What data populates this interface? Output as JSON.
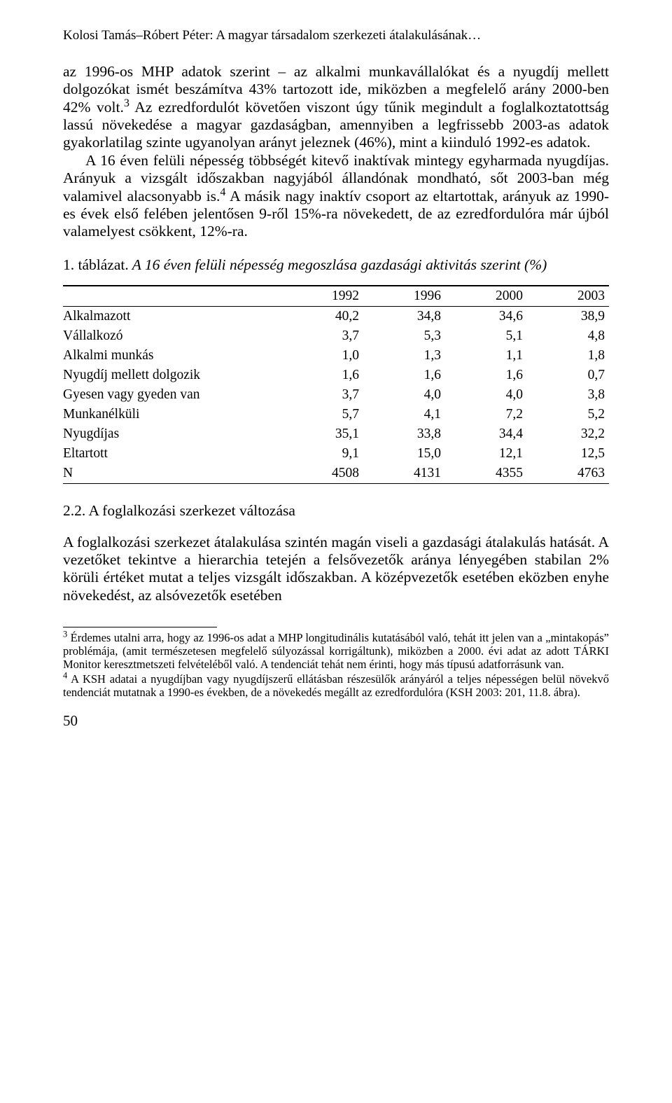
{
  "header": "Kolosi Tamás–Róbert Péter: A magyar társadalom szerkezeti átalakulásának…",
  "para1_before_sup": "az 1996-os MHP adatok szerint – az alkalmi munkavállalókat és a nyugdíj mellett dolgozókat ismét beszámítva 43% tartozott ide, miközben a megfelelő arány 2000-ben 42% volt.",
  "sup1": "3",
  "para1_mid": " Az ezredfordulót követően viszont úgy tűnik megindult a foglalkoztatottság lassú növekedése a magyar gazdaságban, amennyiben a legfrissebb 2003-as adatok gyakorlatilag szinte ugyanolyan arányt jeleznek (46%), mint a kiinduló 1992-es adatok.",
  "para1_newline": "A 16 éven felüli népesség többségét kitevő inaktívak mintegy egyharmada nyugdíjas. Arányuk a vizsgált időszakban nagyjából állandónak mondható, sőt 2003-ban még valamivel alacsonyabb is.",
  "sup2": "4",
  "para1_after_sup2": " A másik nagy inaktív csoport az eltartottak, arányuk az 1990-es évek első felében jelentősen 9-ről 15%-ra növekedett, de az ezredfordulóra már újból valamelyest csökkent, 12%-ra.",
  "table_caption_prefix": "1. táblázat.",
  "table_caption_italic": " A 16 éven felüli népesség megoszlása gazdasági aktivitás szerint (%)",
  "table": {
    "columns": [
      "",
      "1992",
      "1996",
      "2000",
      "2003"
    ],
    "col_widths": [
      "40%",
      "15%",
      "15%",
      "15%",
      "15%"
    ],
    "rows": [
      [
        "Alkalmazott",
        "40,2",
        "34,8",
        "34,6",
        "38,9"
      ],
      [
        "Vállalkozó",
        "3,7",
        "5,3",
        "5,1",
        "4,8"
      ],
      [
        "Alkalmi munkás",
        "1,0",
        "1,3",
        "1,1",
        "1,8"
      ],
      [
        "Nyugdíj mellett dolgozik",
        "1,6",
        "1,6",
        "1,6",
        "0,7"
      ],
      [
        "Gyesen vagy gyeden van",
        "3,7",
        "4,0",
        "4,0",
        "3,8"
      ],
      [
        "Munkanélküli",
        "5,7",
        "4,1",
        "7,2",
        "5,2"
      ],
      [
        "Nyugdíjas",
        "35,1",
        "33,8",
        "34,4",
        "32,2"
      ],
      [
        "Eltartott",
        "9,1",
        "15,0",
        "12,1",
        "12,5"
      ],
      [
        "N",
        "4508",
        "4131",
        "4355",
        "4763"
      ]
    ]
  },
  "section_heading": "2.2. A foglalkozási szerkezet változása",
  "para2": "A foglalkozási szerkezet átalakulása szintén magán viseli a gazdasági átalakulás hatását. A vezetőket tekintve a hierarchia tetején a felsővezetők aránya lényegében stabilan 2% körüli értéket mutat a teljes vizsgált időszakban. A középvezetők esetében eközben enyhe növekedést, az alsóvezetők esetében",
  "fn3_sup": "3",
  "fn3": " Érdemes utalni arra, hogy az 1996-os adat a MHP longitudinális kutatásából való, tehát itt jelen van a „mintakopás” problémája, (amit természetesen megfelelő súlyozással korrigáltunk), miközben a 2000. évi adat az adott TÁRKI Monitor keresztmetszeti felvételéből való. A tendenciát tehát nem érinti, hogy más típusú adatforrásunk van.",
  "fn4_sup": "4",
  "fn4": " A KSH adatai a nyugdíjban vagy nyugdíjszerű ellátásban részesülők arányáról a teljes népességen belül növekvő tendenciát mutatnak a 1990-es években, de a növekedés megállt az ezredfordulóra (KSH 2003: 201, 11.8. ábra).",
  "page_number": "50"
}
